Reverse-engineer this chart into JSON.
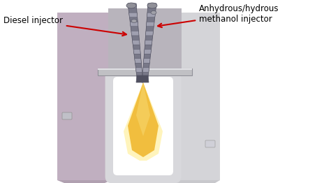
{
  "bg_color": "#ffffff",
  "label_diesel": "Diesel injector",
  "label_methanol": "Anhydrous/hydrous\nmethanol injector",
  "arrow_color": "#cc0000",
  "body_left_color": "#c0afc0",
  "body_right_color": "#d4d4d8",
  "body_center_color": "#b8b4bc",
  "body_top_color": "#c8c4c8",
  "injector_color": "#787888",
  "injector_light": "#9898a8",
  "injector_dark": "#505060",
  "injector_ridge": "#a0a0b0",
  "flame_outer": "#f0b830",
  "flame_mid": "#f5d060",
  "flame_glow": "#fff0a0",
  "chamber_fill": "#d8d8dc",
  "chamber_inner": "#ffffff",
  "platform_color": "#c0c0c4",
  "platform_edge": "#909098"
}
